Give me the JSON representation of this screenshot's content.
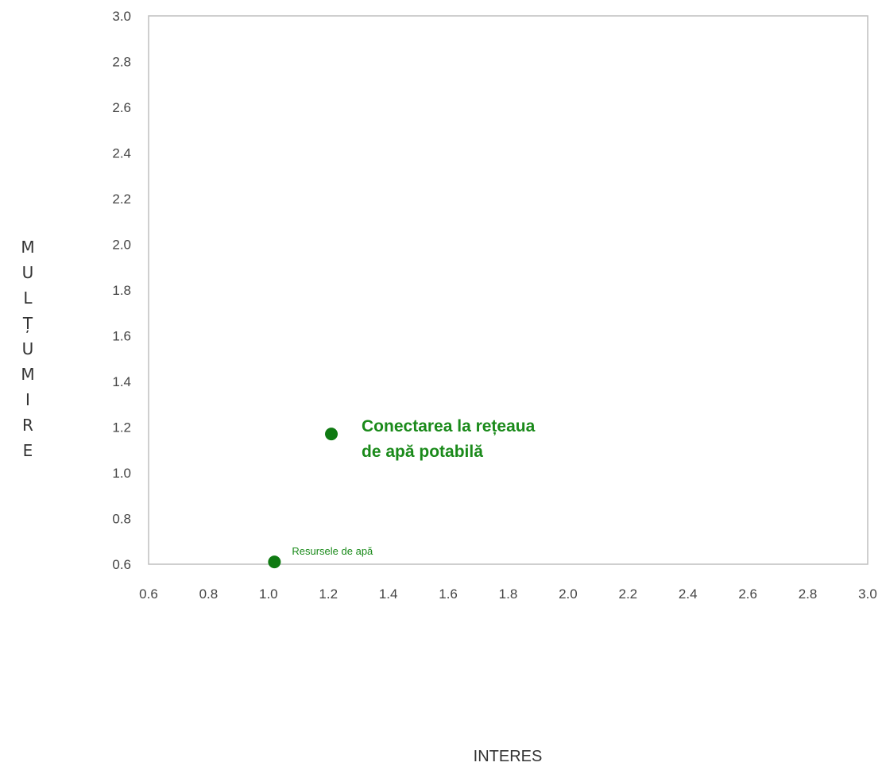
{
  "chart_data": {
    "type": "scatter",
    "title": "",
    "xlabel": "INTERES",
    "ylabel": "MULȚUMIRE",
    "xlim": [
      0.6,
      3.0
    ],
    "ylim": [
      0.6,
      3.0
    ],
    "x_ticks": [
      "0.6",
      "0.8",
      "1.0",
      "1.2",
      "1.4",
      "1.6",
      "1.8",
      "2.0",
      "2.2",
      "2.4",
      "2.6",
      "2.8",
      "3.0"
    ],
    "y_ticks": [
      "0.6",
      "0.8",
      "1.0",
      "1.2",
      "1.4",
      "1.6",
      "1.8",
      "2.0",
      "2.2",
      "2.4",
      "2.6",
      "2.8",
      "3.0"
    ],
    "grid": false,
    "series": [
      {
        "points": [
          {
            "x": 1.21,
            "y": 1.17,
            "label_lines": [
              "Conectarea la rețeaua",
              "de apă potabilă"
            ],
            "emphasis": "large"
          },
          {
            "x": 1.02,
            "y": 0.61,
            "label_lines": [
              "Resursele de apă"
            ],
            "emphasis": "small"
          }
        ]
      }
    ],
    "colors": {
      "marker": "#0f7a12",
      "label": "#1a8a1a",
      "axis_text": "#444444",
      "frame": "#bfbfbf"
    }
  }
}
